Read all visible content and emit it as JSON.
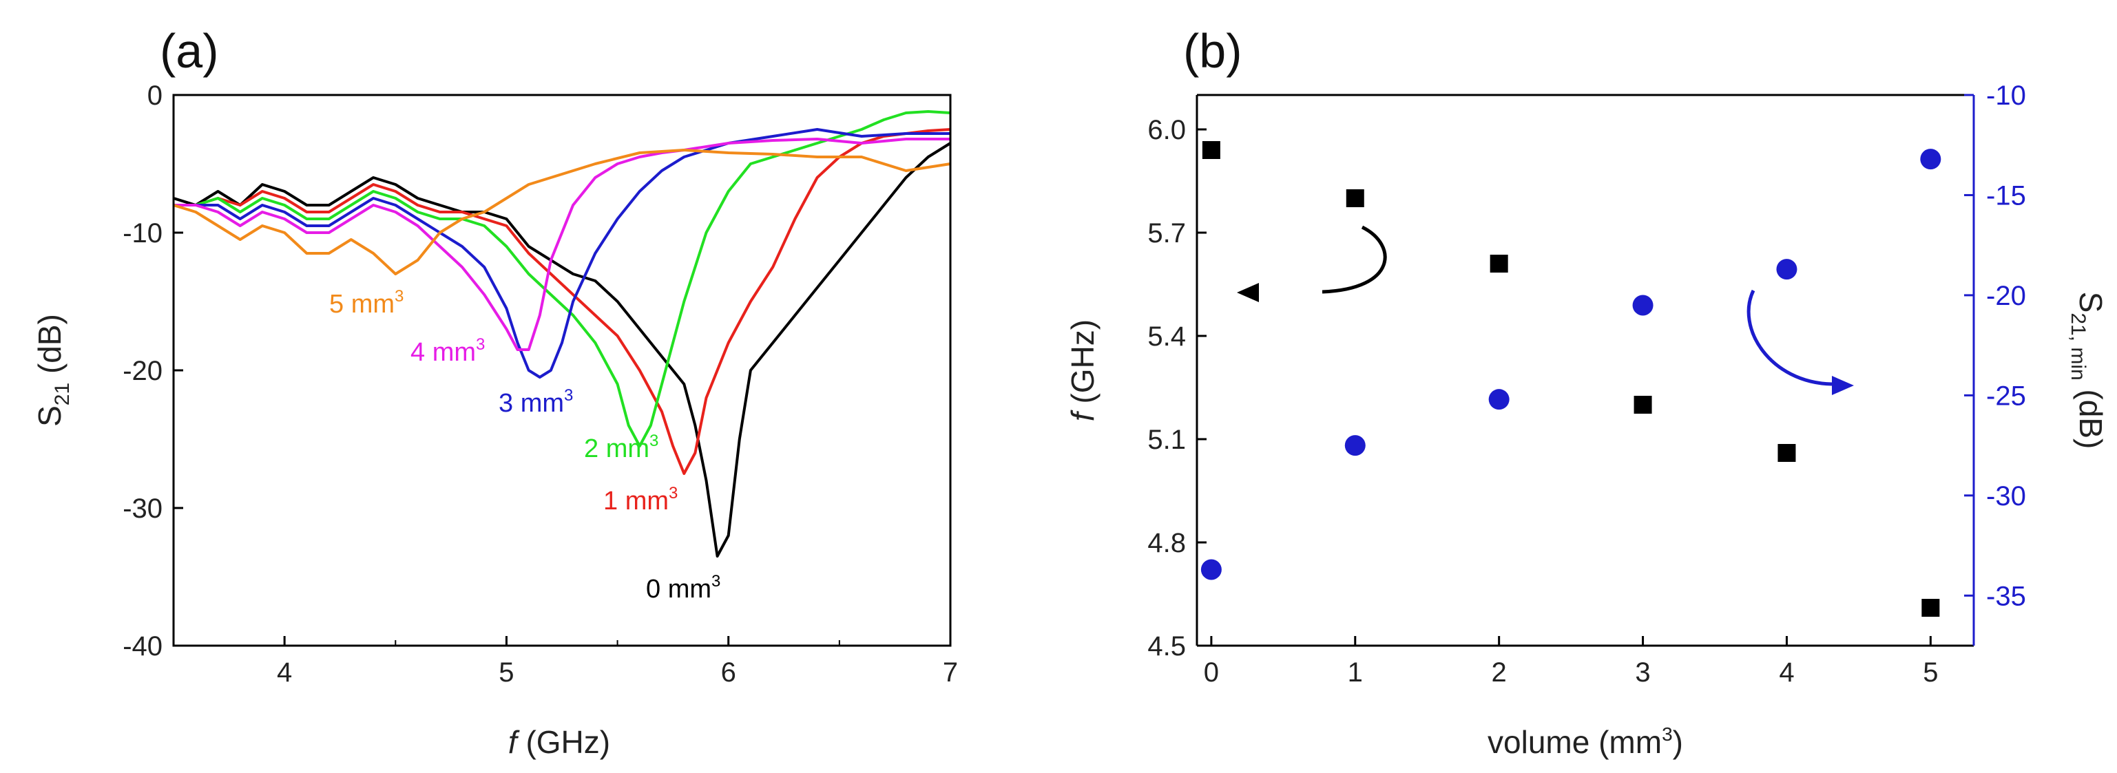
{
  "chart_data": [
    {
      "type": "line",
      "panel_label": "(a)",
      "xlabel_italic": "f",
      "xlabel_rest": " (GHz)",
      "ylabel_main": "S",
      "ylabel_sub": "21",
      "ylabel_rest": " (dB)",
      "xlim": [
        3.5,
        7.0
      ],
      "ylim": [
        -40,
        0
      ],
      "xticks": [
        4,
        5,
        6,
        7
      ],
      "yticks": [
        0,
        -10,
        -20,
        -30,
        -40
      ],
      "grid": false,
      "series": [
        {
          "name": "0 mm3",
          "label_num": "0 mm",
          "label_sup": "3",
          "color": "#000000",
          "x": [
            3.5,
            3.6,
            3.7,
            3.8,
            3.9,
            4.0,
            4.1,
            4.2,
            4.3,
            4.4,
            4.5,
            4.6,
            4.7,
            4.8,
            4.9,
            5.0,
            5.1,
            5.2,
            5.3,
            5.4,
            5.5,
            5.6,
            5.7,
            5.8,
            5.85,
            5.9,
            5.95,
            6.0,
            6.05,
            6.1,
            6.2,
            6.3,
            6.4,
            6.5,
            6.6,
            6.7,
            6.8,
            6.9,
            7.0
          ],
          "y": [
            -7.5,
            -8,
            -7,
            -8,
            -6.5,
            -7,
            -8,
            -8,
            -7,
            -6,
            -6.5,
            -7.5,
            -8,
            -8.5,
            -8.5,
            -9,
            -11,
            -12,
            -13,
            -13.5,
            -15,
            -17,
            -19,
            -21,
            -24,
            -28,
            -33.5,
            -32,
            -25,
            -20,
            -18,
            -16,
            -14,
            -12,
            -10,
            -8,
            -6,
            -4.5,
            -3.5
          ]
        },
        {
          "name": "1 mm3",
          "label_num": "1 mm",
          "label_sup": "3",
          "color": "#e8221c",
          "x": [
            3.5,
            3.6,
            3.7,
            3.8,
            3.9,
            4.0,
            4.1,
            4.2,
            4.3,
            4.4,
            4.5,
            4.6,
            4.7,
            4.8,
            4.9,
            5.0,
            5.1,
            5.2,
            5.3,
            5.4,
            5.5,
            5.6,
            5.7,
            5.75,
            5.8,
            5.85,
            5.9,
            6.0,
            6.1,
            6.2,
            6.3,
            6.4,
            6.5,
            6.6,
            6.7,
            6.8,
            6.9,
            7.0
          ],
          "y": [
            -8,
            -8,
            -7.5,
            -8,
            -7,
            -7.5,
            -8.5,
            -8.5,
            -7.5,
            -6.5,
            -7,
            -8,
            -8.5,
            -8.5,
            -9,
            -9.5,
            -11.5,
            -13,
            -14.5,
            -16,
            -17.5,
            -20,
            -23,
            -25.5,
            -27.5,
            -26,
            -22,
            -18,
            -15,
            -12.5,
            -9,
            -6,
            -4.5,
            -3.5,
            -3,
            -2.8,
            -2.6,
            -2.5
          ]
        },
        {
          "name": "2 mm3",
          "label_num": "2 mm",
          "label_sup": "3",
          "color": "#22e022",
          "x": [
            3.5,
            3.6,
            3.7,
            3.8,
            3.9,
            4.0,
            4.1,
            4.2,
            4.3,
            4.4,
            4.5,
            4.6,
            4.7,
            4.8,
            4.9,
            5.0,
            5.1,
            5.2,
            5.3,
            5.4,
            5.5,
            5.55,
            5.6,
            5.65,
            5.7,
            5.8,
            5.9,
            6.0,
            6.1,
            6.2,
            6.3,
            6.4,
            6.5,
            6.6,
            6.7,
            6.8,
            6.9,
            7.0
          ],
          "y": [
            -8,
            -8,
            -7.5,
            -8.5,
            -7.5,
            -8,
            -9,
            -9,
            -8,
            -7,
            -7.5,
            -8.5,
            -9,
            -9,
            -9.5,
            -11,
            -13,
            -14.5,
            -16,
            -18,
            -21,
            -24,
            -25.5,
            -24,
            -21,
            -15,
            -10,
            -7,
            -5,
            -4.5,
            -4,
            -3.5,
            -3,
            -2.5,
            -1.8,
            -1.3,
            -1.2,
            -1.3
          ]
        },
        {
          "name": "3 mm3",
          "label_num": "3 mm",
          "label_sup": "3",
          "color": "#1c1ccc",
          "x": [
            3.5,
            3.6,
            3.7,
            3.8,
            3.9,
            4.0,
            4.1,
            4.2,
            4.3,
            4.4,
            4.5,
            4.6,
            4.7,
            4.8,
            4.9,
            5.0,
            5.05,
            5.1,
            5.15,
            5.2,
            5.25,
            5.3,
            5.4,
            5.5,
            5.6,
            5.7,
            5.8,
            5.9,
            6.0,
            6.2,
            6.4,
            6.6,
            6.8,
            7.0
          ],
          "y": [
            -8,
            -8,
            -8,
            -9,
            -8,
            -8.5,
            -9.5,
            -9.5,
            -8.5,
            -7.5,
            -8,
            -9,
            -10,
            -11,
            -12.5,
            -15.5,
            -18,
            -20,
            -20.5,
            -20,
            -18,
            -15,
            -11.5,
            -9,
            -7,
            -5.5,
            -4.5,
            -4,
            -3.5,
            -3,
            -2.5,
            -3,
            -2.8,
            -2.8
          ]
        },
        {
          "name": "4 mm3",
          "label_num": "4 mm",
          "label_sup": "3",
          "color": "#e61ce6",
          "x": [
            3.5,
            3.6,
            3.7,
            3.8,
            3.9,
            4.0,
            4.1,
            4.2,
            4.3,
            4.4,
            4.5,
            4.6,
            4.7,
            4.8,
            4.9,
            5.0,
            5.05,
            5.1,
            5.15,
            5.2,
            5.25,
            5.3,
            5.4,
            5.5,
            5.6,
            5.7,
            5.8,
            6.0,
            6.2,
            6.4,
            6.6,
            6.8,
            7.0
          ],
          "y": [
            -8,
            -8,
            -8.5,
            -9.5,
            -8.5,
            -9,
            -10,
            -10,
            -9,
            -8,
            -8.5,
            -9.5,
            -11,
            -12.5,
            -14.5,
            -17,
            -18.5,
            -18.5,
            -16,
            -12,
            -10,
            -8,
            -6,
            -5,
            -4.5,
            -4.2,
            -4,
            -3.5,
            -3.3,
            -3.2,
            -3.5,
            -3.2,
            -3.2
          ]
        },
        {
          "name": "5 mm3",
          "label_num": "5 mm",
          "label_sup": "3",
          "color": "#f28a1a",
          "x": [
            3.5,
            3.6,
            3.7,
            3.8,
            3.9,
            4.0,
            4.1,
            4.2,
            4.3,
            4.4,
            4.5,
            4.6,
            4.7,
            4.8,
            4.9,
            5.0,
            5.1,
            5.2,
            5.4,
            5.6,
            5.8,
            6.0,
            6.2,
            6.4,
            6.6,
            6.8,
            7.0
          ],
          "y": [
            -8,
            -8.5,
            -9.5,
            -10.5,
            -9.5,
            -10,
            -11.5,
            -11.5,
            -10.5,
            -11.5,
            -13,
            -12,
            -10,
            -9,
            -8.5,
            -7.5,
            -6.5,
            -6,
            -5,
            -4.2,
            -4,
            -4.2,
            -4.3,
            -4.5,
            -4.5,
            -5.5,
            -5
          ]
        }
      ]
    },
    {
      "type": "scatter",
      "panel_label": "(b)",
      "xlabel_pre": "volume (mm",
      "xlabel_sup": "3",
      "xlabel_post": ")",
      "ylabel_left_italic": "f",
      "ylabel_left_rest": " (GHz)",
      "ylabel_right_main": "S",
      "ylabel_right_sub": "21, min",
      "ylabel_right_rest": " (dB)",
      "xlim": [
        -0.1,
        5.3
      ],
      "ylim_left": [
        4.5,
        6.1
      ],
      "ylim_right": [
        -37.5,
        -10
      ],
      "xticks": [
        0,
        1,
        2,
        3,
        4,
        5
      ],
      "yticks_left": [
        "4.5",
        "4.8",
        "5.1",
        "5.4",
        "5.7",
        "6.0"
      ],
      "yticks_right": [
        -10,
        -15,
        -20,
        -25,
        -30,
        -35
      ],
      "right_axis_color": "#1c1ccc",
      "series": [
        {
          "name": "f (GHz)",
          "axis": "left",
          "marker": "square",
          "color": "#000000",
          "x": [
            0,
            1,
            2,
            3,
            4,
            5
          ],
          "y": [
            5.94,
            5.8,
            5.61,
            5.2,
            5.06,
            4.61
          ]
        },
        {
          "name": "S21,min (dB)",
          "axis": "right",
          "marker": "circle",
          "color": "#1c1ccc",
          "x": [
            0,
            1,
            2,
            3,
            4,
            5
          ],
          "y": [
            -33.7,
            -27.5,
            -25.2,
            -20.5,
            -18.7,
            -13.2
          ]
        }
      ]
    }
  ]
}
